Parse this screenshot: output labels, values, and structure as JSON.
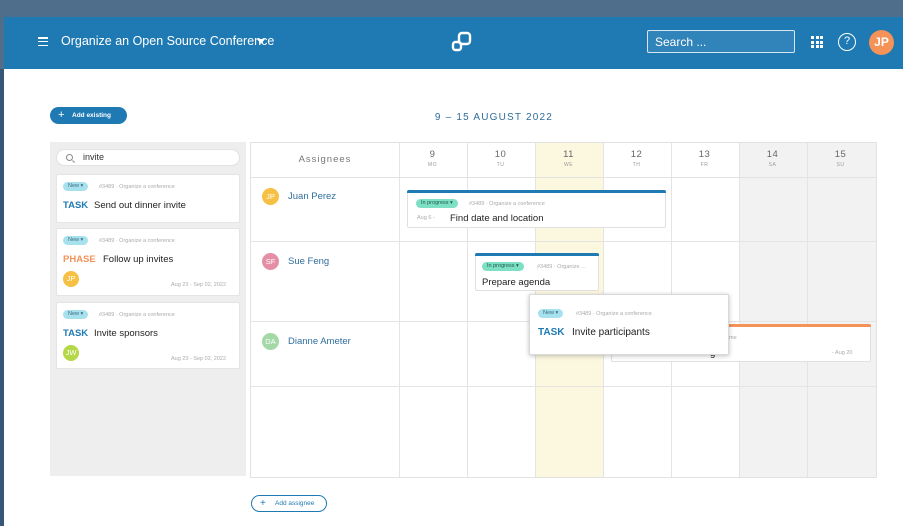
{
  "header": {
    "project_title": "Organize an Open Source Conference",
    "search_placeholder": "Search ...",
    "user_initials": "JP",
    "help_glyph": "?",
    "icons": [
      "hamburger-icon",
      "caret-down-icon",
      "logo-icon",
      "app-grid-icon",
      "help-icon"
    ]
  },
  "toolbar": {
    "add_existing_label": "Add existing",
    "week_label": "9 – 15 AUGUST 2022",
    "add_assignee_label": "Add assignee",
    "plus_glyph": "+"
  },
  "left_panel": {
    "search_value": "invite",
    "cards": [
      {
        "status": "New",
        "ref": "#3489 · Organize a conference",
        "type": "TASK",
        "title": "Send out dinner invite",
        "dates": "",
        "avatar": ""
      },
      {
        "status": "New",
        "ref": "#3489 · Organize a conference",
        "type": "PHASE",
        "title": "Follow up invites",
        "dates": "Aug 23 - Sep 02, 2022",
        "avatar": "JP"
      },
      {
        "status": "New",
        "ref": "#3489 · Organize a conference",
        "type": "TASK",
        "title": "Invite sponsors",
        "dates": "Aug 23 - Sep 02, 2022",
        "avatar": "JW"
      }
    ]
  },
  "calendar": {
    "assignees_header": "Assignees",
    "days": [
      {
        "num": "9",
        "name": "MO"
      },
      {
        "num": "10",
        "name": "TU"
      },
      {
        "num": "11",
        "name": "WE"
      },
      {
        "num": "12",
        "name": "TH"
      },
      {
        "num": "13",
        "name": "FR"
      },
      {
        "num": "14",
        "name": "SA"
      },
      {
        "num": "15",
        "name": "SU"
      }
    ],
    "assignees": [
      {
        "initials": "JP",
        "name": "Juan Perez"
      },
      {
        "initials": "SF",
        "name": "Sue Feng"
      },
      {
        "initials": "DA",
        "name": "Dianne Ameter"
      }
    ],
    "cards": [
      {
        "status": "In progress",
        "ref": "#3489 · Organize a conference",
        "date_prefix": "Aug 6 -",
        "title": "Find date and location"
      },
      {
        "status": "In progress",
        "ref": "#3489 · Organize ...",
        "title": "Prepare agenda"
      },
      {
        "ref": "me",
        "title_fragment": "g",
        "date_suffix": "- Aug 20"
      }
    ],
    "drag_card": {
      "status": "New",
      "ref": "#3489 · Organize a conference",
      "type": "TASK",
      "title": "Invite participants"
    }
  },
  "colors": {
    "primary": "#1f7ab3",
    "phase": "#f49258",
    "badge_new": "#a7e1ee",
    "badge_in_progress": "#7ddfc3",
    "today_column": "#fcf8e0",
    "avatar_jp": "#f6c044",
    "avatar_sf": "#e58fa6",
    "avatar_jw": "#b4d84a",
    "avatar_da": "#a4d8a6"
  }
}
